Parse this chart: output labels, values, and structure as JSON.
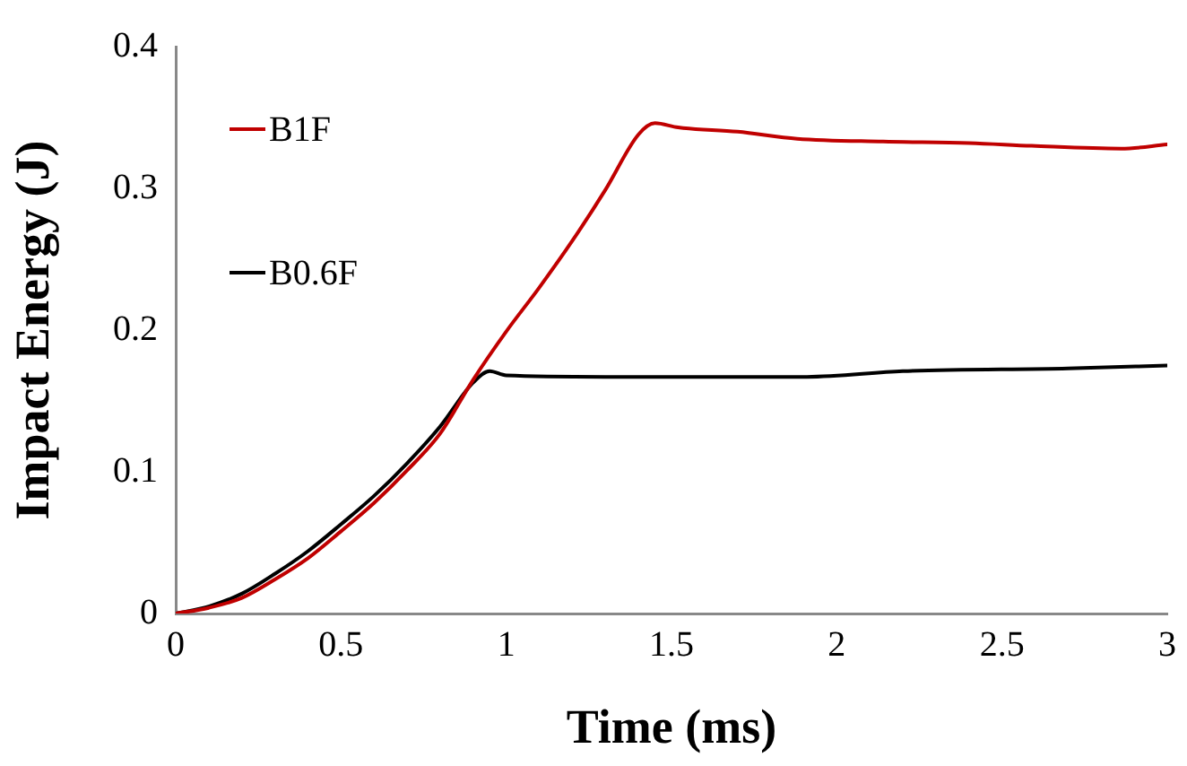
{
  "chart_data": {
    "type": "line",
    "xlabel": "Time (ms)",
    "ylabel": "Impact Energy (J)",
    "xlim": [
      0,
      3
    ],
    "xticks": [
      0,
      0.5,
      1,
      1.5,
      2,
      2.5,
      3
    ],
    "ylim": [
      0,
      0.4
    ],
    "yticks": [
      0,
      0.1,
      0.2,
      0.3,
      0.4
    ],
    "grid": false,
    "legend": "top left",
    "marker": "none",
    "line_style": "solid",
    "series": [
      {
        "name": "B1F",
        "color": "#c00000",
        "x": [
          0,
          0.1,
          0.2,
          0.3,
          0.4,
          0.5,
          0.6,
          0.7,
          0.8,
          0.9,
          1.0,
          1.1,
          1.2,
          1.3,
          1.4,
          1.45,
          1.52,
          1.7,
          1.88,
          2.14,
          2.4,
          2.59,
          2.86,
          3
        ],
        "values": [
          0,
          0.004,
          0.011,
          0.024,
          0.039,
          0.058,
          0.078,
          0.101,
          0.127,
          0.165,
          0.199,
          0.23,
          0.263,
          0.299,
          0.338,
          0.346,
          0.343,
          0.34,
          0.335,
          0.333,
          0.332,
          0.33,
          0.328,
          0.331
        ]
      },
      {
        "name": "B0.6F",
        "color": "#000000",
        "x": [
          0,
          0.1,
          0.2,
          0.3,
          0.4,
          0.5,
          0.6,
          0.7,
          0.8,
          0.9,
          0.95,
          1.0,
          1.3,
          1.6,
          1.91,
          2.2,
          2.7,
          3
        ],
        "values": [
          0,
          0.005,
          0.014,
          0.028,
          0.044,
          0.063,
          0.083,
          0.106,
          0.132,
          0.163,
          0.171,
          0.168,
          0.167,
          0.167,
          0.167,
          0.171,
          0.173,
          0.175
        ]
      }
    ]
  }
}
